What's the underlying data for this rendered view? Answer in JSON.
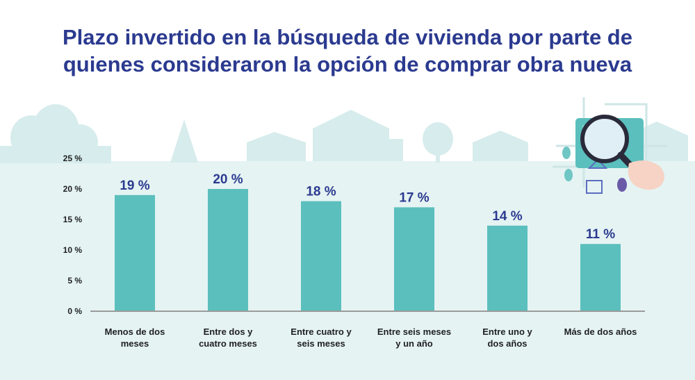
{
  "title_lines": [
    "Plazo invertido en la búsqueda de vivienda por parte de",
    "quienes consideraron la opción de comprar obra nueva"
  ],
  "colors": {
    "title": "#2b3a8f",
    "bar": "#5bbfbd",
    "background_band": "#e5f3f3",
    "silhouette": "#d7ecec",
    "axis": "#9b9b9b"
  },
  "chart_data": {
    "type": "bar",
    "categories": [
      [
        "Menos de dos",
        "meses"
      ],
      [
        "Entre dos y",
        "cuatro meses"
      ],
      [
        "Entre cuatro y",
        "seis meses"
      ],
      [
        "Entre seis meses",
        "y un año"
      ],
      [
        "Entre uno y",
        "dos años"
      ],
      [
        "Más de dos años"
      ]
    ],
    "values": [
      19,
      20,
      18,
      17,
      14,
      11
    ],
    "value_labels": [
      "19 %",
      "20 %",
      "18 %",
      "17 %",
      "14 %",
      "11 %"
    ],
    "yticks": [
      0,
      5,
      10,
      15,
      20,
      25
    ],
    "ytick_labels": [
      "0 %",
      "5 %",
      "10 %",
      "15 %",
      "20 %",
      "25 %"
    ],
    "ylim": [
      0,
      25
    ],
    "grid": false,
    "legend": "none"
  },
  "decoration": {
    "icon": "magnifying-glass-over-map-icon"
  }
}
